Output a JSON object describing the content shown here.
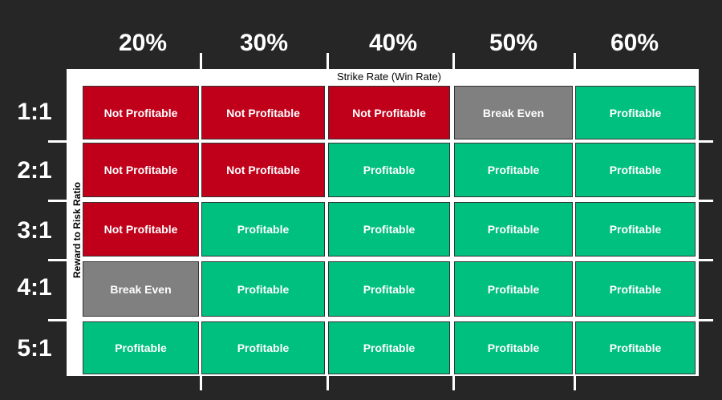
{
  "chart_data": {
    "type": "table",
    "title": "",
    "xlabel": "Strike Rate (Win Rate)",
    "ylabel": "Reward to Risk Ratio",
    "columns": [
      "20%",
      "30%",
      "40%",
      "50%",
      "60%"
    ],
    "rows": [
      "1:1",
      "2:1",
      "3:1",
      "4:1",
      "5:1"
    ],
    "cells": [
      [
        "Not Profitable",
        "Not Profitable",
        "Not Profitable",
        "Break Even",
        "Profitable"
      ],
      [
        "Not Profitable",
        "Not Profitable",
        "Profitable",
        "Profitable",
        "Profitable"
      ],
      [
        "Not Profitable",
        "Profitable",
        "Profitable",
        "Profitable",
        "Profitable"
      ],
      [
        "Break Even",
        "Profitable",
        "Profitable",
        "Profitable",
        "Profitable"
      ],
      [
        "Profitable",
        "Profitable",
        "Profitable",
        "Profitable",
        "Profitable"
      ]
    ],
    "colors": {
      "Not Profitable": "#c0001a",
      "Break Even": "#808080",
      "Profitable": "#00c080"
    }
  }
}
